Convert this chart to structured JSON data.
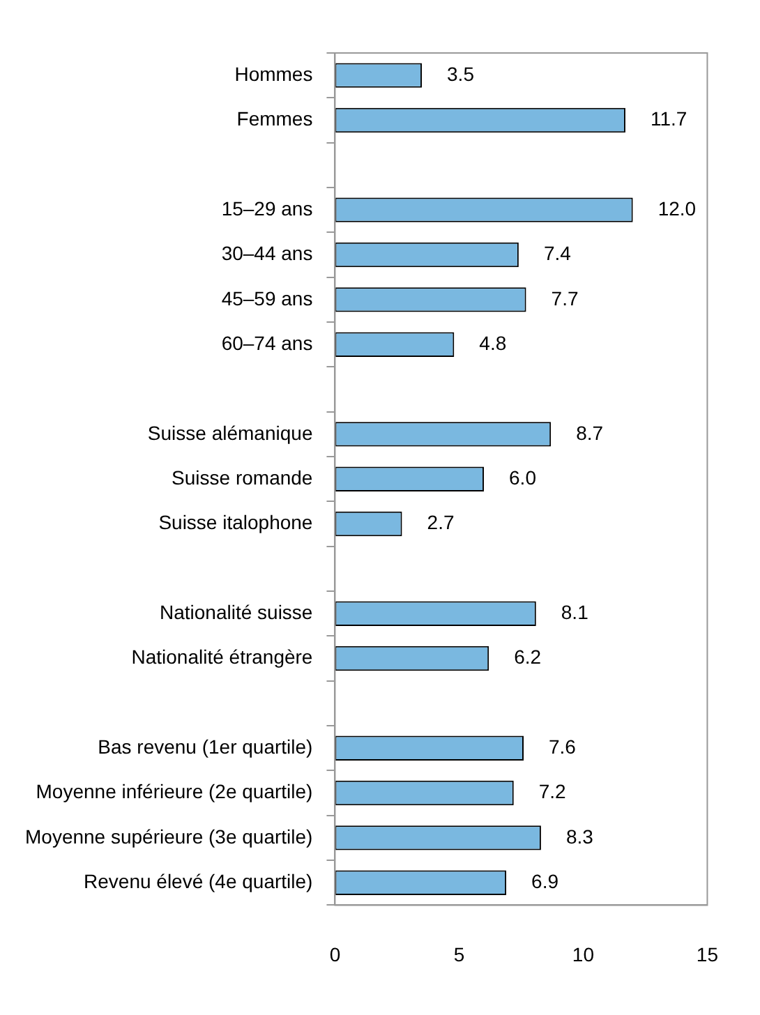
{
  "chart_data": {
    "type": "bar",
    "orientation": "horizontal",
    "categories": [
      "Hommes",
      "Femmes",
      null,
      "15–29 ans",
      "30–44 ans",
      "45–59 ans",
      "60–74 ans",
      null,
      "Suisse alémanique",
      "Suisse romande",
      "Suisse italophone",
      null,
      "Nationalité suisse",
      "Nationalité étrangère",
      null,
      "Bas revenu (1er quartile)",
      "Moyenne inférieure (2e quartile)",
      "Moyenne supérieure (3e quartile)",
      "Revenu élevé (4e quartile)"
    ],
    "values": [
      3.5,
      11.7,
      null,
      12.0,
      7.4,
      7.7,
      4.8,
      null,
      8.7,
      6.0,
      2.7,
      null,
      8.1,
      6.2,
      null,
      7.6,
      7.2,
      8.3,
      6.9
    ],
    "value_labels": [
      "3.5",
      "11.7",
      null,
      "12.0",
      "7.4",
      "7.7",
      "4.8",
      null,
      "8.7",
      "6.0",
      "2.7",
      null,
      "8.1",
      "6.2",
      null,
      "7.6",
      "7.2",
      "8.3",
      "6.9"
    ],
    "color": "#7ab8e0",
    "xlim": [
      0,
      15
    ],
    "xticks": [
      0,
      5,
      10,
      15
    ],
    "grid": false,
    "legend": false
  }
}
